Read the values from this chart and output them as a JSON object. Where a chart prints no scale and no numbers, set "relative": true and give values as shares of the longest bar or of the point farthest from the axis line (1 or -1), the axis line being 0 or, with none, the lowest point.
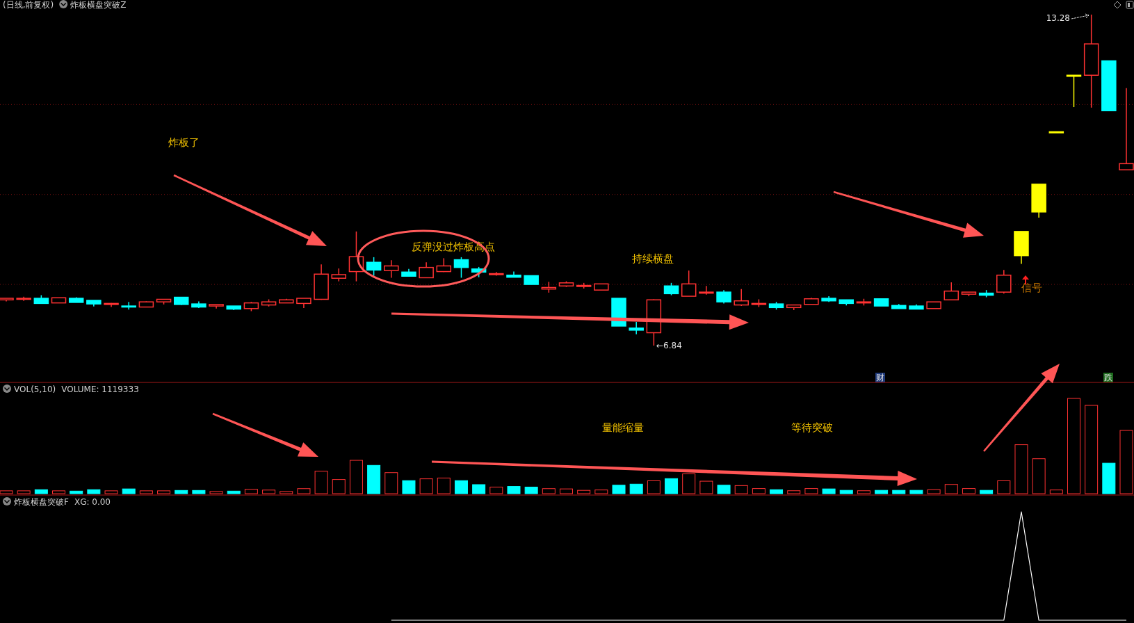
{
  "chart_data": [
    {
      "type": "candlestick",
      "title": "(日线,前复权)",
      "subtitle": "炸板横盘突破Z",
      "categories": [
        null,
        null,
        null,
        null,
        null,
        null,
        null,
        null,
        null,
        null,
        null,
        null,
        null,
        null,
        null,
        null,
        null,
        null,
        null,
        null,
        null,
        null,
        null,
        null,
        null,
        null,
        null,
        null,
        null,
        null,
        null,
        null,
        null,
        null,
        null,
        null,
        null,
        null,
        null,
        null,
        null,
        null,
        null,
        null,
        null,
        null,
        null,
        null,
        null,
        null,
        null,
        null,
        null,
        null,
        null,
        null,
        null,
        null,
        null,
        null,
        null,
        null,
        null,
        null,
        null
      ],
      "ohlc": [
        [
          7.73,
          7.76,
          7.7,
          7.76
        ],
        [
          7.75,
          7.79,
          7.71,
          7.76
        ],
        [
          7.76,
          7.82,
          7.66,
          7.66
        ],
        [
          7.67,
          7.77,
          7.67,
          7.77
        ],
        [
          7.76,
          7.78,
          7.68,
          7.68
        ],
        [
          7.72,
          7.72,
          7.6,
          7.65
        ],
        [
          7.64,
          7.67,
          7.59,
          7.66
        ],
        [
          7.61,
          7.69,
          7.54,
          7.59
        ],
        [
          7.59,
          7.7,
          7.59,
          7.69
        ],
        [
          7.69,
          7.74,
          7.64,
          7.74
        ],
        [
          7.78,
          7.78,
          7.63,
          7.64
        ],
        [
          7.65,
          7.7,
          7.57,
          7.59
        ],
        [
          7.61,
          7.64,
          7.56,
          7.64
        ],
        [
          7.61,
          7.61,
          7.53,
          7.55
        ],
        [
          7.56,
          7.69,
          7.51,
          7.67
        ],
        [
          7.63,
          7.74,
          7.6,
          7.69
        ],
        [
          7.67,
          7.75,
          7.67,
          7.73
        ],
        [
          7.66,
          7.76,
          7.57,
          7.76
        ],
        [
          7.74,
          8.42,
          7.73,
          8.23
        ],
        [
          8.15,
          8.34,
          8.09,
          8.22
        ],
        [
          8.28,
          9.06,
          8.09,
          8.57
        ],
        [
          8.46,
          8.56,
          8.2,
          8.31
        ],
        [
          8.3,
          8.5,
          8.16,
          8.39
        ],
        [
          8.27,
          8.33,
          8.19,
          8.19
        ],
        [
          8.16,
          8.46,
          8.16,
          8.36
        ],
        [
          8.28,
          8.54,
          8.27,
          8.39
        ],
        [
          8.51,
          8.56,
          8.16,
          8.36
        ],
        [
          8.33,
          8.37,
          8.17,
          8.27
        ],
        [
          8.22,
          8.27,
          8.2,
          8.24
        ],
        [
          8.21,
          8.28,
          8.17,
          8.17
        ],
        [
          8.2,
          8.2,
          8.03,
          8.03
        ],
        [
          7.94,
          8.08,
          7.87,
          7.97
        ],
        [
          8.0,
          8.09,
          7.98,
          8.06
        ],
        [
          8.0,
          8.06,
          7.95,
          8.01
        ],
        [
          7.92,
          8.04,
          7.92,
          8.04
        ],
        [
          7.76,
          7.76,
          7.22,
          7.22
        ],
        [
          7.18,
          7.3,
          7.06,
          7.14
        ],
        [
          7.09,
          7.74,
          6.84,
          7.73
        ],
        [
          8.0,
          8.06,
          7.82,
          7.85
        ],
        [
          7.8,
          8.3,
          7.8,
          8.04
        ],
        [
          7.87,
          8.0,
          7.83,
          7.88
        ],
        [
          7.88,
          7.92,
          7.66,
          7.69
        ],
        [
          7.63,
          7.94,
          7.61,
          7.71
        ],
        [
          7.65,
          7.74,
          7.59,
          7.66
        ],
        [
          7.65,
          7.69,
          7.54,
          7.58
        ],
        [
          7.58,
          7.63,
          7.53,
          7.63
        ],
        [
          7.64,
          7.77,
          7.64,
          7.75
        ],
        [
          7.76,
          7.8,
          7.69,
          7.71
        ],
        [
          7.73,
          7.73,
          7.62,
          7.66
        ],
        [
          7.68,
          7.75,
          7.62,
          7.69
        ],
        [
          7.75,
          7.75,
          7.61,
          7.61
        ],
        [
          7.62,
          7.65,
          7.56,
          7.56
        ],
        [
          7.61,
          7.64,
          7.55,
          7.55
        ],
        [
          7.56,
          7.69,
          7.56,
          7.69
        ],
        [
          7.73,
          8.07,
          7.73,
          7.9
        ],
        [
          7.84,
          7.88,
          7.8,
          7.88
        ],
        [
          7.86,
          7.92,
          7.78,
          7.82
        ],
        [
          7.88,
          8.31,
          7.85,
          8.21
        ],
        [
          8.59,
          9.06,
          8.43,
          9.06
        ],
        [
          9.44,
          9.98,
          9.33,
          9.98
        ],
        [
          11.0,
          11.0,
          10.98,
          10.98
        ],
        [
          12.1,
          12.1,
          11.48,
          12.08
        ],
        [
          12.1,
          13.28,
          11.47,
          12.71
        ],
        [
          12.38,
          12.38,
          11.41,
          11.41
        ],
        [
          10.26,
          11.85,
          10.26,
          10.38
        ]
      ],
      "colors": [
        "#ff3232",
        "#ff3232",
        "#00ffff",
        "#ff3232",
        "#00ffff",
        "#00ffff",
        "#ff3232",
        "#00ffff",
        "#ff3232",
        "#ff3232",
        "#00ffff",
        "#00ffff",
        "#ff3232",
        "#00ffff",
        "#ff3232",
        "#ff3232",
        "#ff3232",
        "#ff3232",
        "#ff3232",
        "#ff3232",
        "#ff3232",
        "#00ffff",
        "#ff3232",
        "#00ffff",
        "#ff3232",
        "#ff3232",
        "#00ffff",
        "#00ffff",
        "#ff3232",
        "#00ffff",
        "#00ffff",
        "#ff3232",
        "#ff3232",
        "#ff3232",
        "#ff3232",
        "#00ffff",
        "#00ffff",
        "#ff3232",
        "#00ffff",
        "#ff3232",
        "#ff3232",
        "#00ffff",
        "#ff3232",
        "#ff3232",
        "#00ffff",
        "#ff3232",
        "#ff3232",
        "#00ffff",
        "#00ffff",
        "#ff3232",
        "#00ffff",
        "#00ffff",
        "#00ffff",
        "#ff3232",
        "#ff3232",
        "#ff3232",
        "#00ffff",
        "#ff3232",
        "#ffff00",
        "#ffff00",
        "#ffff00",
        "#ffff00",
        "#ff3232",
        "#00ffff",
        "#ff3232"
      ],
      "yticks": [
        {
          "value": 8.03,
          "label": null
        },
        {
          "value": 9.78,
          "label": null
        },
        {
          "value": 11.53,
          "label": null
        }
      ],
      "grid": "y",
      "tick_labels": false,
      "annotations": [
        "炸板了",
        "反弹没过炸板高点",
        "持续横盘",
        "信号",
        "财",
        "跌",
        "13.28",
        "←6.84"
      ]
    },
    {
      "type": "bar",
      "title": "VOL(5,10)",
      "subtitle": "VOLUME: 1119333",
      "relative": true,
      "tick_labels": false,
      "categories": [
        null,
        null,
        null,
        null,
        null,
        null,
        null,
        null,
        null,
        null,
        null,
        null,
        null,
        null,
        null,
        null,
        null,
        null,
        null,
        null,
        null,
        null,
        null,
        null,
        null,
        null,
        null,
        null,
        null,
        null,
        null,
        null,
        null,
        null,
        null,
        null,
        null,
        null,
        null,
        null,
        null,
        null,
        null,
        null,
        null,
        null,
        null,
        null,
        null,
        null,
        null,
        null,
        null,
        null,
        null,
        null,
        null,
        null,
        null,
        null,
        null,
        null,
        null,
        null,
        null
      ],
      "values": [
        0.03,
        0.03,
        0.042,
        0.03,
        0.027,
        0.042,
        0.03,
        0.05,
        0.03,
        0.03,
        0.034,
        0.034,
        0.023,
        0.027,
        0.046,
        0.038,
        0.023,
        0.053,
        0.236,
        0.149,
        0.35,
        0.297,
        0.221,
        0.137,
        0.156,
        0.164,
        0.137,
        0.095,
        0.069,
        0.076,
        0.069,
        0.053,
        0.05,
        0.035,
        0.039,
        0.089,
        0.1,
        0.135,
        0.158,
        0.208,
        0.131,
        0.089,
        0.085,
        0.054,
        0.042,
        0.031,
        0.054,
        0.05,
        0.035,
        0.031,
        0.035,
        0.035,
        0.035,
        0.042,
        0.097,
        0.054,
        0.035,
        0.135,
        0.514,
        0.367,
        0.039,
        1,
        0.927,
        0.32,
        0.664
      ],
      "colors": [
        "#ff3232",
        "#ff3232",
        "#00ffff",
        "#ff3232",
        "#00ffff",
        "#00ffff",
        "#ff3232",
        "#00ffff",
        "#ff3232",
        "#ff3232",
        "#00ffff",
        "#00ffff",
        "#ff3232",
        "#00ffff",
        "#ff3232",
        "#ff3232",
        "#ff3232",
        "#ff3232",
        "#ff3232",
        "#ff3232",
        "#ff3232",
        "#00ffff",
        "#ff3232",
        "#00ffff",
        "#ff3232",
        "#ff3232",
        "#00ffff",
        "#00ffff",
        "#ff3232",
        "#00ffff",
        "#00ffff",
        "#ff3232",
        "#ff3232",
        "#ff3232",
        "#ff3232",
        "#00ffff",
        "#00ffff",
        "#ff3232",
        "#00ffff",
        "#ff3232",
        "#ff3232",
        "#00ffff",
        "#ff3232",
        "#ff3232",
        "#00ffff",
        "#ff3232",
        "#ff3232",
        "#00ffff",
        "#00ffff",
        "#ff3232",
        "#00ffff",
        "#00ffff",
        "#00ffff",
        "#ff3232",
        "#ff3232",
        "#ff3232",
        "#00ffff",
        "#ff3232",
        "#ff3232",
        "#ff3232",
        "#ff3232",
        "#ff3232",
        "#ff3232",
        "#00ffff",
        "#ff3232"
      ],
      "annotations": [
        "量能缩量",
        "等待突破"
      ]
    },
    {
      "type": "line",
      "title": "炸板横盘突破F",
      "subtitle": "XG: 0.00",
      "relative": true,
      "tick_labels": false,
      "marker": "none",
      "categories": [
        null,
        null,
        null,
        null,
        null,
        null,
        null,
        null,
        null,
        null,
        null,
        null,
        null,
        null,
        null,
        null,
        null,
        null,
        null,
        null,
        null,
        null,
        null,
        null,
        null,
        null,
        null,
        null,
        null,
        null,
        null,
        null,
        null,
        null,
        null,
        null,
        null,
        null,
        null,
        null,
        null,
        null,
        null,
        null,
        null,
        null,
        null,
        null,
        null,
        null,
        null,
        null,
        null,
        null,
        null,
        null,
        null,
        null,
        null,
        null,
        null,
        null,
        null,
        null,
        null
      ],
      "series": [
        {
          "color": "#ffffff",
          "values": [
            null,
            null,
            null,
            null,
            null,
            null,
            null,
            null,
            null,
            null,
            null,
            null,
            null,
            null,
            null,
            null,
            null,
            null,
            null,
            null,
            null,
            null,
            0,
            0,
            0,
            0,
            0,
            0,
            0,
            0,
            0,
            0,
            0,
            0,
            0,
            0,
            0,
            0,
            0,
            0,
            0,
            0,
            0,
            0,
            0,
            0,
            0,
            0,
            0,
            0,
            0,
            0,
            0,
            0,
            0,
            0,
            0,
            0,
            1,
            0,
            0,
            0,
            0,
            0,
            0
          ]
        }
      ]
    }
  ]
}
